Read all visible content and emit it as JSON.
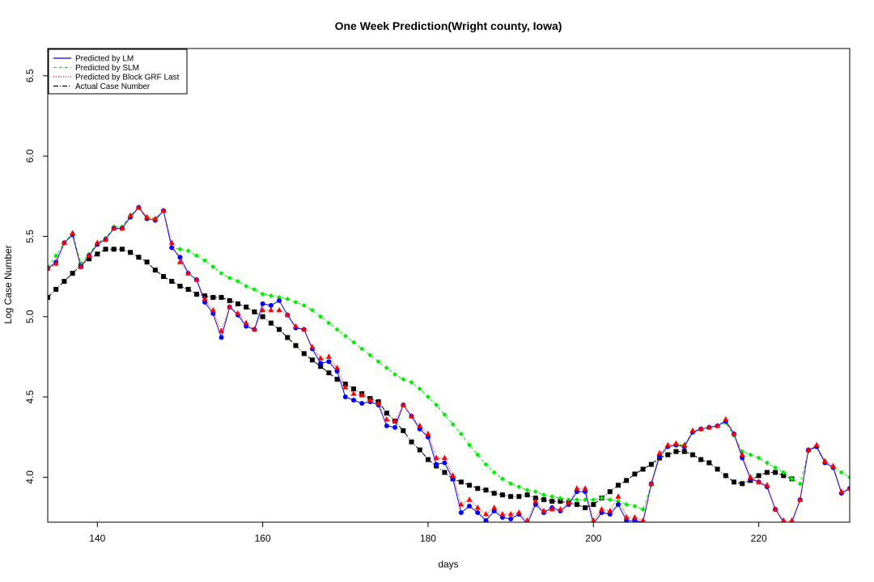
{
  "chart_data": {
    "type": "line",
    "title": "One Week Prediction(Wright county, Iowa)",
    "xlabel": "days",
    "ylabel": "Log Case Number",
    "xlim": [
      134,
      231
    ],
    "ylim": [
      3.72,
      6.67
    ],
    "x_ticks": [
      140,
      160,
      180,
      200,
      220
    ],
    "y_ticks": [
      4.0,
      4.5,
      5.0,
      5.5,
      6.0,
      6.5
    ],
    "x_tick_labels": [
      "140",
      "160",
      "180",
      "200",
      "220"
    ],
    "y_tick_labels": [
      "4.0",
      "4.5",
      "5.0",
      "5.5",
      "6.0",
      "6.5"
    ],
    "grid": false,
    "legend_position": "top-left",
    "legend": [
      {
        "label": "Predicted by LM",
        "color": "#0000ff",
        "line": "solid"
      },
      {
        "label": "Predicted by SLM",
        "color": "#00ee00",
        "line": "dashed"
      },
      {
        "label": "Predicted by Block GRF Last",
        "color": "#ff0000",
        "line": "dotted"
      },
      {
        "label": "Actual Case Number",
        "color": "#000000",
        "line": "dashdot"
      }
    ],
    "x": [
      134,
      135,
      136,
      137,
      138,
      139,
      140,
      141,
      142,
      143,
      144,
      145,
      146,
      147,
      148,
      149,
      150,
      151,
      152,
      153,
      154,
      155,
      156,
      157,
      158,
      159,
      160,
      161,
      162,
      163,
      164,
      165,
      166,
      167,
      168,
      169,
      170,
      171,
      172,
      173,
      174,
      175,
      176,
      177,
      178,
      179,
      180,
      181,
      182,
      183,
      184,
      185,
      186,
      187,
      188,
      189,
      190,
      191,
      192,
      193,
      194,
      195,
      196,
      197,
      198,
      199,
      200,
      201,
      202,
      203,
      204,
      205,
      206,
      207,
      208,
      209,
      210,
      211,
      212,
      213,
      214,
      215,
      216,
      217,
      218,
      219,
      220,
      221,
      222,
      223,
      224,
      225,
      226,
      227,
      228,
      229,
      230,
      231
    ],
    "series": [
      {
        "name": "Actual Case Number",
        "color": "#000000",
        "marker": "square",
        "values": [
          5.12,
          5.17,
          5.22,
          5.27,
          5.32,
          5.36,
          5.39,
          5.42,
          5.42,
          5.42,
          5.4,
          5.37,
          5.34,
          5.29,
          5.25,
          5.22,
          5.19,
          5.17,
          5.14,
          5.13,
          5.12,
          5.12,
          5.1,
          5.08,
          5.06,
          5.03,
          5.0,
          4.96,
          4.92,
          4.87,
          4.82,
          4.77,
          4.73,
          4.69,
          4.65,
          4.61,
          4.58,
          4.55,
          4.52,
          4.49,
          4.47,
          4.4,
          4.35,
          4.29,
          4.22,
          4.17,
          4.11,
          4.07,
          4.03,
          3.99,
          3.97,
          3.95,
          3.93,
          3.92,
          3.9,
          3.89,
          3.88,
          3.88,
          3.89,
          3.87,
          3.86,
          3.85,
          3.85,
          3.84,
          3.83,
          3.81,
          3.83,
          3.87,
          3.91,
          3.95,
          3.98,
          4.02,
          4.05,
          4.08,
          4.12,
          4.14,
          4.16,
          4.16,
          4.14,
          4.11,
          4.09,
          4.05,
          4.01,
          3.97,
          3.96,
          3.98,
          4.01,
          4.03,
          4.03,
          4.01,
          3.99,
          null,
          null,
          null,
          null,
          null,
          null,
          null
        ]
      },
      {
        "name": "Predicted by LM",
        "color": "#0000ff",
        "marker": "circle",
        "values": [
          5.3,
          5.34,
          5.46,
          5.51,
          5.31,
          5.38,
          5.45,
          5.48,
          5.55,
          5.55,
          5.62,
          5.68,
          5.61,
          5.6,
          5.66,
          5.43,
          5.37,
          5.27,
          5.23,
          5.09,
          5.02,
          4.87,
          5.06,
          5.01,
          4.94,
          4.92,
          5.08,
          5.07,
          5.1,
          5.01,
          4.93,
          4.92,
          4.8,
          4.71,
          4.72,
          4.66,
          4.5,
          4.48,
          4.46,
          4.47,
          4.45,
          4.32,
          4.31,
          4.45,
          4.38,
          4.3,
          4.25,
          4.08,
          4.09,
          3.99,
          3.78,
          3.82,
          3.78,
          3.73,
          3.79,
          3.75,
          3.74,
          3.77,
          3.71,
          3.83,
          3.78,
          3.81,
          3.79,
          3.83,
          3.91,
          3.91,
          3.71,
          3.78,
          3.77,
          3.83,
          3.73,
          3.73,
          3.72,
          3.96,
          4.13,
          4.19,
          4.2,
          4.19,
          4.28,
          4.3,
          4.31,
          4.32,
          4.35,
          4.27,
          4.12,
          3.99,
          3.97,
          3.94,
          3.8,
          3.72,
          3.72,
          3.86,
          4.17,
          4.19,
          4.09,
          4.06,
          3.9,
          3.93
        ]
      },
      {
        "name": "Predicted by SLM",
        "color": "#00ee00",
        "marker": "diamond",
        "values": [
          5.31,
          5.38,
          5.46,
          5.52,
          5.33,
          5.39,
          5.46,
          5.49,
          5.56,
          5.56,
          5.63,
          5.68,
          5.62,
          5.61,
          5.66,
          5.43,
          5.42,
          5.41,
          5.38,
          5.35,
          5.31,
          5.27,
          5.24,
          5.22,
          5.19,
          5.17,
          5.14,
          5.13,
          5.12,
          5.11,
          5.09,
          5.07,
          5.04,
          5.0,
          4.96,
          4.92,
          4.88,
          4.84,
          4.8,
          4.76,
          4.72,
          4.68,
          4.64,
          4.61,
          4.59,
          4.55,
          4.5,
          4.45,
          4.39,
          4.33,
          4.27,
          4.2,
          4.14,
          4.08,
          4.03,
          3.99,
          3.96,
          3.94,
          3.92,
          3.91,
          3.89,
          3.88,
          3.87,
          3.86,
          3.86,
          3.86,
          3.86,
          3.87,
          3.86,
          3.85,
          3.83,
          3.82,
          3.8,
          3.95,
          4.13,
          4.19,
          4.2,
          4.2,
          4.28,
          4.3,
          4.31,
          4.32,
          4.34,
          4.26,
          4.16,
          4.14,
          4.12,
          4.09,
          4.06,
          4.03,
          3.99,
          3.96,
          4.16,
          4.19,
          4.09,
          4.06,
          4.03,
          4.0
        ]
      },
      {
        "name": "Predicted by Block GRF Last",
        "color": "#ff0000",
        "marker": "triangle",
        "values": [
          5.3,
          5.33,
          5.46,
          5.52,
          5.31,
          5.38,
          5.46,
          5.48,
          5.55,
          5.55,
          5.63,
          5.68,
          5.62,
          5.61,
          5.66,
          5.46,
          5.34,
          5.27,
          5.23,
          5.11,
          5.04,
          4.91,
          5.06,
          5.02,
          4.96,
          4.92,
          5.04,
          5.04,
          5.04,
          5.01,
          4.94,
          4.92,
          4.81,
          4.74,
          4.75,
          4.68,
          4.56,
          4.52,
          4.51,
          4.48,
          4.46,
          4.36,
          4.35,
          4.45,
          4.38,
          4.32,
          4.27,
          4.12,
          4.12,
          4.01,
          3.83,
          3.86,
          3.81,
          3.77,
          3.81,
          3.77,
          3.77,
          3.78,
          3.73,
          3.85,
          3.79,
          3.8,
          3.8,
          3.84,
          3.93,
          3.93,
          3.73,
          3.8,
          3.79,
          3.88,
          3.75,
          3.75,
          3.73,
          3.96,
          4.15,
          4.2,
          4.21,
          4.2,
          4.29,
          4.3,
          4.31,
          4.32,
          4.36,
          4.27,
          4.14,
          4.0,
          3.97,
          3.95,
          3.8,
          3.73,
          3.73,
          3.86,
          4.17,
          4.2,
          4.1,
          4.07,
          3.91,
          3.93
        ]
      }
    ]
  }
}
